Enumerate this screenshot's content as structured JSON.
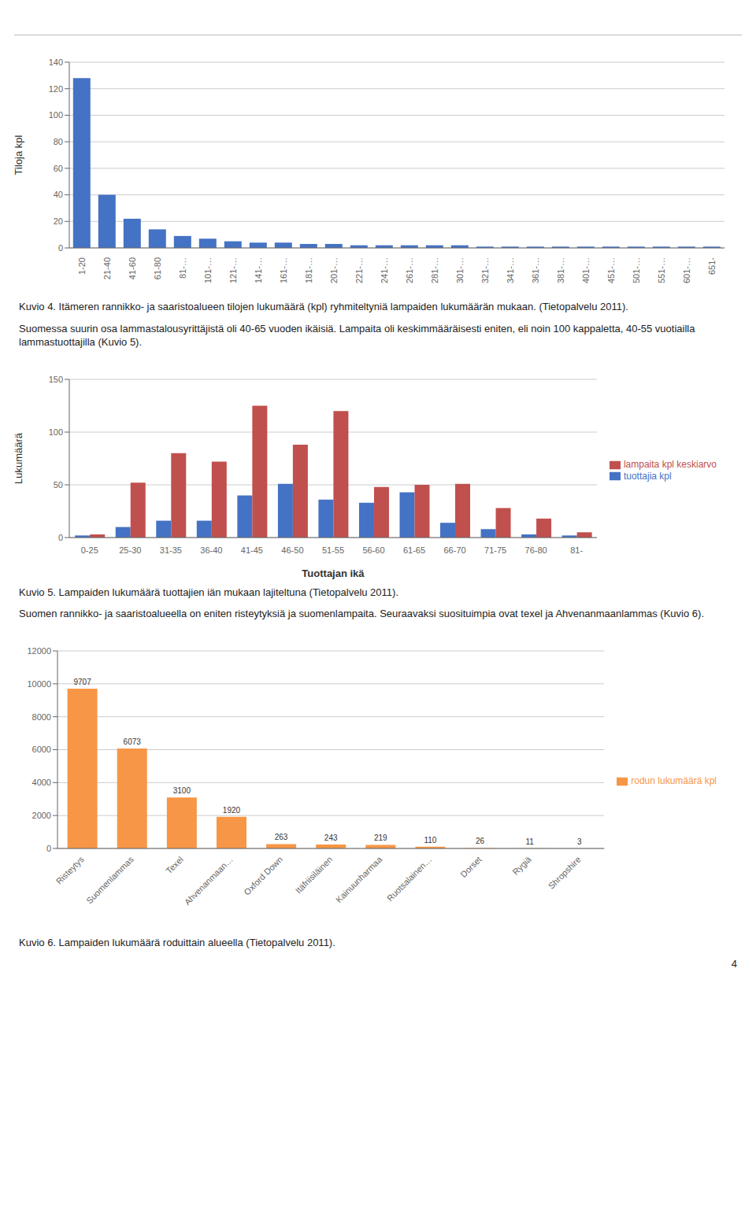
{
  "chart_data": [
    {
      "type": "bar",
      "title": "Kuvio  4. Itämeren rannikko- ja saaristoalueen tilojen lukumäärä (kpl) ryhmiteltyniä lampaiden lukumäärän mukaan. (Tietopalvelu 2011).",
      "ylabel": "Tiloja kpl",
      "categories": [
        "1-20",
        "21-40",
        "41-60",
        "61-80",
        "81-…",
        "101-…",
        "121-…",
        "141-…",
        "161-…",
        "181-…",
        "201-…",
        "221-…",
        "241-…",
        "261-…",
        "281-…",
        "301-…",
        "321-…",
        "341-…",
        "361-…",
        "381-…",
        "401-…",
        "451-…",
        "501-…",
        "551-…",
        "601-…",
        "651-"
      ],
      "values": [
        128,
        40,
        22,
        14,
        9,
        7,
        5,
        4,
        4,
        3,
        3,
        2,
        2,
        2,
        2,
        2,
        1,
        1,
        1,
        1,
        1,
        1,
        1,
        1,
        1,
        1
      ],
      "color": "#4472C4",
      "ylim": [
        0,
        140
      ],
      "yticks": [
        0,
        20,
        40,
        60,
        80,
        100,
        120,
        140
      ],
      "grid": true,
      "annotations": [
        "Suomessa suurin osa lammastalousyrittäjistä oli 40-65 vuoden ikäisiä. Lampaita oli keskimmääräisesti eniten, eli noin 100 kappaletta, 40-55 vuotiailla lammastuottajilla (Kuvio 5)."
      ]
    },
    {
      "type": "bar",
      "title": "Kuvio 5. Lampaiden lukumäärä tuottajien iän mukaan lajiteltuna (Tietopalvelu 2011).",
      "ylabel": "Lukumäärä",
      "xlabel": "Tuottajan ikä",
      "categories": [
        "0-25",
        "25-30",
        "31-35",
        "36-40",
        "41-45",
        "46-50",
        "51-55",
        "56-60",
        "61-65",
        "66-70",
        "71-75",
        "76-80",
        "81-"
      ],
      "series": [
        {
          "name": "tuottajia kpl",
          "color": "#4472C4",
          "values": [
            2,
            10,
            16,
            16,
            40,
            51,
            36,
            33,
            43,
            14,
            8,
            3,
            2
          ]
        },
        {
          "name": "lampaita kpl keskiarvo",
          "color": "#C0504D",
          "values": [
            3,
            52,
            80,
            72,
            125,
            88,
            120,
            48,
            50,
            51,
            28,
            18,
            5
          ]
        }
      ],
      "ylim": [
        0,
        150
      ],
      "yticks": [
        0,
        50,
        100,
        150
      ],
      "grid": true,
      "legend": "right",
      "annotations": [
        "Suomen rannikko- ja saaristoalueella on eniten risteytyksiä ja suomenlampaita.  Seuraavaksi suosituimpia ovat texel ja Ahvenanmaanlammas (Kuvio 6)."
      ]
    },
    {
      "type": "bar",
      "title": "Kuvio 6. Lampaiden lukumäärä roduittain alueella (Tietopalvelu 2011).",
      "categories": [
        "Risteytys",
        "Suomenlammas",
        "Texel",
        "Ahvenanmaan…",
        "Oxford Down",
        "Itäfriisiläinen",
        "Kainuunharmaa",
        "Ruotsalainen…",
        "Dorset",
        "Rygiä",
        "Shropshire"
      ],
      "series": [
        {
          "name": "rodun lukumäärä kpl",
          "color": "#F79646",
          "values": [
            9707,
            6073,
            3100,
            1920,
            263,
            243,
            219,
            110,
            26,
            11,
            3
          ]
        }
      ],
      "ylim": [
        0,
        12000
      ],
      "yticks": [
        0,
        2000,
        4000,
        6000,
        8000,
        10000,
        12000
      ],
      "grid": true,
      "legend": "right",
      "data_labels": true,
      "annotations": [
        "4"
      ]
    }
  ]
}
